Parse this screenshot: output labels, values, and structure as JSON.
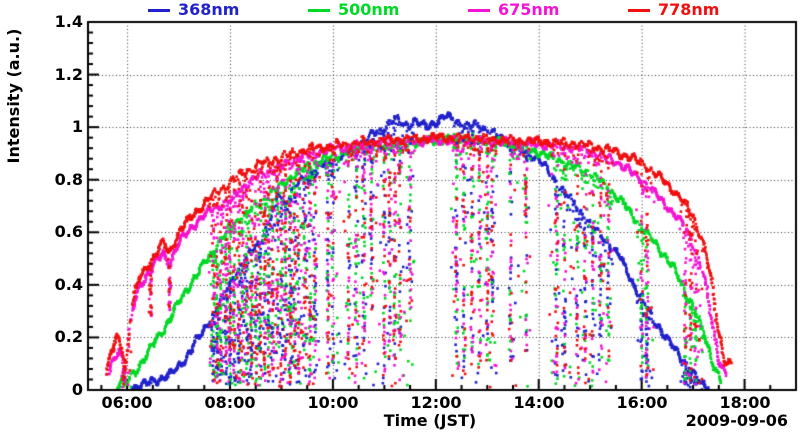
{
  "chart_data": {
    "type": "scatter",
    "title": "",
    "xlabel": "Time (JST)",
    "ylabel": "Intensity (a.u.)",
    "annotation": "2009-09-06",
    "grid": {
      "style": "dotted",
      "major_x": true,
      "major_y": true
    },
    "x_axis": {
      "tick_labels": [
        "06:00",
        "08:00",
        "10:00",
        "12:00",
        "14:00",
        "16:00",
        "18:00"
      ],
      "tick_hours": [
        6,
        8,
        10,
        12,
        14,
        16,
        18
      ],
      "range_hours": [
        5.24,
        19.0
      ],
      "minor_step_hours": 0.5
    },
    "y_axis": {
      "tick_labels": [
        "0",
        "0.2",
        "0.4",
        "0.6",
        "0.8",
        "1",
        "1.2",
        "1.4"
      ],
      "tick_values": [
        0,
        0.2,
        0.4,
        0.6,
        0.8,
        1.0,
        1.2,
        1.4
      ],
      "grid_values": [
        0.2,
        0.4,
        0.6,
        0.8,
        1.0,
        1.2
      ],
      "range": [
        0,
        1.4
      ],
      "minor_step": 0.04
    },
    "legend": {
      "position": "top",
      "entries": [
        {
          "label": "368nm",
          "color": "#2222cc"
        },
        {
          "label": "500nm",
          "color": "#00d926"
        },
        {
          "label": "675nm",
          "color": "#f414d2"
        },
        {
          "label": "778nm",
          "color": "#f01010"
        }
      ]
    },
    "series": [
      {
        "name": "368nm",
        "color": "#2222cc",
        "envelope": [
          [
            6.1,
            0.01
          ],
          [
            6.35,
            0.02
          ],
          [
            6.6,
            0.04
          ],
          [
            6.85,
            0.06
          ],
          [
            7.05,
            0.1
          ],
          [
            7.3,
            0.17
          ],
          [
            7.5,
            0.23
          ],
          [
            7.75,
            0.31
          ],
          [
            8.0,
            0.41
          ],
          [
            8.25,
            0.48
          ],
          [
            8.5,
            0.55
          ],
          [
            8.7,
            0.6
          ],
          [
            8.85,
            0.69
          ],
          [
            8.95,
            0.76
          ],
          [
            9.05,
            0.71
          ],
          [
            9.3,
            0.78
          ],
          [
            9.5,
            0.82
          ],
          [
            9.75,
            0.85
          ],
          [
            10.0,
            0.875
          ],
          [
            10.25,
            0.9
          ],
          [
            10.5,
            0.93
          ],
          [
            10.75,
            0.97
          ],
          [
            11.0,
            1.0
          ],
          [
            11.2,
            1.03
          ],
          [
            11.4,
            1.01
          ],
          [
            11.6,
            1.02
          ],
          [
            11.8,
            1.0
          ],
          [
            12.0,
            1.02
          ],
          [
            12.2,
            1.04
          ],
          [
            12.45,
            1.02
          ],
          [
            12.6,
            1.0
          ],
          [
            12.8,
            1.01
          ],
          [
            13.0,
            0.99
          ],
          [
            13.25,
            0.96
          ],
          [
            13.5,
            0.93
          ],
          [
            13.8,
            0.9
          ],
          [
            14.0,
            0.88
          ],
          [
            14.3,
            0.8
          ],
          [
            14.6,
            0.73
          ],
          [
            15.0,
            0.63
          ],
          [
            15.3,
            0.57
          ],
          [
            15.6,
            0.5
          ],
          [
            15.9,
            0.38
          ],
          [
            16.2,
            0.28
          ],
          [
            16.5,
            0.19
          ],
          [
            16.8,
            0.12
          ],
          [
            17.0,
            0.06
          ],
          [
            17.15,
            0.03
          ],
          [
            17.3,
            0.01
          ]
        ]
      },
      {
        "name": "500nm",
        "color": "#00d926",
        "envelope": [
          [
            5.82,
            0.02
          ],
          [
            5.92,
            0.05
          ],
          [
            6.0,
            0.03
          ],
          [
            6.2,
            0.08
          ],
          [
            6.4,
            0.14
          ],
          [
            6.6,
            0.2
          ],
          [
            6.8,
            0.26
          ],
          [
            7.0,
            0.33
          ],
          [
            7.25,
            0.41
          ],
          [
            7.5,
            0.48
          ],
          [
            7.75,
            0.55
          ],
          [
            8.0,
            0.62
          ],
          [
            8.25,
            0.66
          ],
          [
            8.5,
            0.7
          ],
          [
            8.75,
            0.74
          ],
          [
            9.0,
            0.78
          ],
          [
            9.25,
            0.82
          ],
          [
            9.5,
            0.85
          ],
          [
            9.75,
            0.87
          ],
          [
            10.0,
            0.89
          ],
          [
            10.3,
            0.91
          ],
          [
            10.6,
            0.92
          ],
          [
            11.0,
            0.93
          ],
          [
            11.5,
            0.94
          ],
          [
            12.0,
            0.95
          ],
          [
            12.5,
            0.96
          ],
          [
            13.0,
            0.95
          ],
          [
            13.5,
            0.93
          ],
          [
            14.0,
            0.905
          ],
          [
            14.5,
            0.865
          ],
          [
            15.0,
            0.825
          ],
          [
            15.3,
            0.78
          ],
          [
            15.6,
            0.72
          ],
          [
            16.0,
            0.62
          ],
          [
            16.3,
            0.55
          ],
          [
            16.6,
            0.47
          ],
          [
            17.0,
            0.32
          ],
          [
            17.2,
            0.22
          ],
          [
            17.4,
            0.1
          ],
          [
            17.55,
            0.03
          ]
        ]
      },
      {
        "name": "675nm",
        "color": "#f414d2",
        "envelope": [
          [
            5.65,
            0.06
          ],
          [
            5.75,
            0.12
          ],
          [
            5.85,
            0.16
          ],
          [
            5.95,
            0.08
          ],
          [
            6.1,
            0.3
          ],
          [
            6.25,
            0.4
          ],
          [
            6.5,
            0.47
          ],
          [
            6.7,
            0.52
          ],
          [
            6.82,
            0.48
          ],
          [
            7.0,
            0.56
          ],
          [
            7.3,
            0.63
          ],
          [
            7.6,
            0.68
          ],
          [
            8.0,
            0.72
          ],
          [
            8.3,
            0.78
          ],
          [
            8.6,
            0.82
          ],
          [
            9.0,
            0.85
          ],
          [
            9.3,
            0.88
          ],
          [
            9.6,
            0.9
          ],
          [
            10.0,
            0.92
          ],
          [
            10.5,
            0.93
          ],
          [
            11.0,
            0.94
          ],
          [
            11.5,
            0.945
          ],
          [
            12.0,
            0.95
          ],
          [
            12.5,
            0.95
          ],
          [
            13.0,
            0.945
          ],
          [
            13.5,
            0.94
          ],
          [
            14.0,
            0.935
          ],
          [
            14.5,
            0.925
          ],
          [
            15.0,
            0.91
          ],
          [
            15.5,
            0.87
          ],
          [
            16.0,
            0.8
          ],
          [
            16.5,
            0.7
          ],
          [
            16.8,
            0.63
          ],
          [
            17.0,
            0.56
          ],
          [
            17.2,
            0.44
          ],
          [
            17.35,
            0.28
          ],
          [
            17.5,
            0.12
          ],
          [
            17.65,
            0.05
          ]
        ]
      },
      {
        "name": "778nm",
        "color": "#f01010",
        "envelope": [
          [
            5.6,
            0.07
          ],
          [
            5.7,
            0.14
          ],
          [
            5.8,
            0.2
          ],
          [
            5.9,
            0.16
          ],
          [
            5.98,
            0.1
          ],
          [
            6.1,
            0.33
          ],
          [
            6.25,
            0.43
          ],
          [
            6.5,
            0.5
          ],
          [
            6.7,
            0.56
          ],
          [
            6.82,
            0.52
          ],
          [
            7.0,
            0.6
          ],
          [
            7.3,
            0.67
          ],
          [
            7.6,
            0.73
          ],
          [
            8.0,
            0.79
          ],
          [
            8.3,
            0.83
          ],
          [
            8.6,
            0.86
          ],
          [
            9.0,
            0.885
          ],
          [
            9.3,
            0.905
          ],
          [
            9.6,
            0.92
          ],
          [
            10.0,
            0.93
          ],
          [
            10.5,
            0.94
          ],
          [
            11.0,
            0.95
          ],
          [
            11.5,
            0.955
          ],
          [
            12.0,
            0.96
          ],
          [
            12.5,
            0.958
          ],
          [
            13.0,
            0.955
          ],
          [
            13.5,
            0.95
          ],
          [
            14.0,
            0.945
          ],
          [
            14.5,
            0.94
          ],
          [
            15.0,
            0.93
          ],
          [
            15.5,
            0.905
          ],
          [
            16.0,
            0.865
          ],
          [
            16.5,
            0.785
          ],
          [
            16.8,
            0.72
          ],
          [
            17.0,
            0.66
          ],
          [
            17.2,
            0.56
          ],
          [
            17.35,
            0.42
          ],
          [
            17.5,
            0.22
          ],
          [
            17.6,
            0.12
          ],
          [
            17.75,
            0.09
          ]
        ]
      }
    ],
    "clouds": {
      "streaks": [
        [
          5.95,
          0.02
        ],
        [
          6.45,
          0.28
        ],
        [
          6.82,
          0.3
        ],
        [
          7.68,
          0.02
        ],
        [
          7.75,
          0.05
        ],
        [
          7.82,
          0.02
        ],
        [
          7.92,
          0.03
        ],
        [
          8.0,
          0.02
        ],
        [
          8.08,
          0.05
        ],
        [
          8.17,
          0.02
        ],
        [
          8.25,
          0.03
        ],
        [
          8.33,
          0.02
        ],
        [
          8.42,
          0.05
        ],
        [
          8.5,
          0.02
        ],
        [
          8.58,
          0.03
        ],
        [
          8.67,
          0.02
        ],
        [
          8.75,
          0.04
        ],
        [
          8.83,
          0.02
        ],
        [
          8.92,
          0.03
        ],
        [
          9.0,
          0.02
        ],
        [
          9.08,
          0.05
        ],
        [
          9.17,
          0.02
        ],
        [
          9.25,
          0.03
        ],
        [
          9.33,
          0.02
        ],
        [
          9.45,
          0.04
        ],
        [
          9.55,
          0.02
        ],
        [
          9.65,
          0.03
        ],
        [
          9.9,
          0.05
        ],
        [
          10.0,
          0.1
        ],
        [
          10.3,
          0.1
        ],
        [
          10.45,
          0.05
        ],
        [
          10.6,
          0.15
        ],
        [
          10.75,
          0.3
        ],
        [
          11.0,
          0.05
        ],
        [
          11.1,
          0.1
        ],
        [
          11.2,
          0.05
        ],
        [
          11.3,
          0.15
        ],
        [
          11.5,
          0.3
        ],
        [
          12.4,
          0.1
        ],
        [
          12.55,
          0.05
        ],
        [
          12.7,
          0.1
        ],
        [
          12.85,
          0.05
        ],
        [
          13.0,
          0.1
        ],
        [
          13.1,
          0.2
        ],
        [
          13.45,
          0.1
        ],
        [
          13.75,
          0.15
        ],
        [
          14.35,
          0.02
        ],
        [
          14.5,
          0.05
        ],
        [
          14.75,
          0.02
        ],
        [
          14.9,
          0.03
        ],
        [
          15.05,
          0.02
        ],
        [
          15.2,
          0.05
        ],
        [
          15.35,
          0.1
        ],
        [
          16.0,
          0.02
        ],
        [
          16.1,
          0.05
        ],
        [
          16.85,
          0.02
        ],
        [
          16.95,
          0.03
        ],
        [
          17.05,
          0.02
        ]
      ],
      "windows": [
        [
          5.9,
          6.1,
          0.5
        ],
        [
          7.6,
          9.75,
          1.4
        ],
        [
          9.85,
          10.15,
          0.5
        ],
        [
          10.2,
          11.6,
          0.45
        ],
        [
          12.3,
          13.2,
          0.45
        ],
        [
          13.4,
          13.85,
          0.25
        ],
        [
          14.2,
          15.45,
          0.5
        ],
        [
          15.9,
          16.25,
          0.4
        ],
        [
          16.75,
          17.2,
          0.6
        ]
      ]
    }
  }
}
